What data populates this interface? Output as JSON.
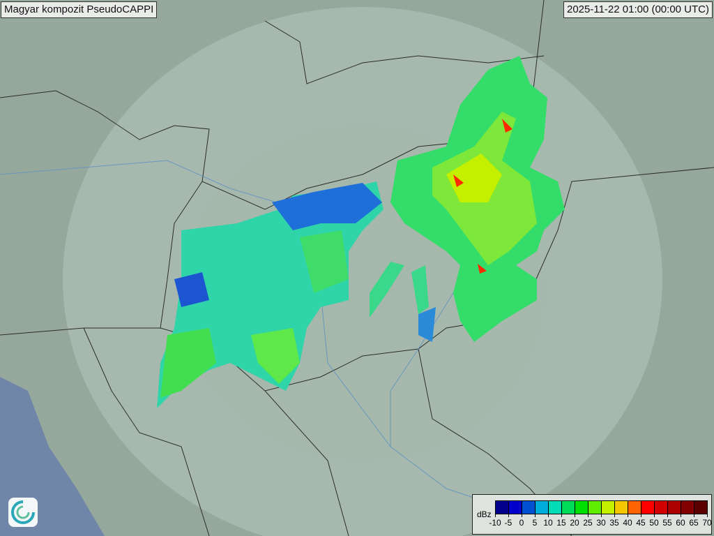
{
  "header": {
    "title": "Magyar kompozit  PseudoCAPPI",
    "timestamp": "2025-11-22 01:00 (00:00 UTC)"
  },
  "legend": {
    "unit": "dBz",
    "ticks": [
      "-10",
      "-5",
      "0",
      "5",
      "10",
      "15",
      "20",
      "25",
      "30",
      "35",
      "40",
      "45",
      "50",
      "55",
      "60",
      "65",
      "70"
    ],
    "colors": [
      "#00008c",
      "#0000cc",
      "#0050d2",
      "#00aedc",
      "#00dcb4",
      "#00dc5a",
      "#00e000",
      "#60ee00",
      "#c4f000",
      "#f4c800",
      "#ff6400",
      "#ff0000",
      "#d20000",
      "#aa0000",
      "#820000",
      "#5a0000"
    ]
  },
  "map": {
    "background": "#8fa196",
    "radar_coverage": "#c8d4cc"
  },
  "logo": {
    "icon": "weather-service-swirl-icon"
  }
}
